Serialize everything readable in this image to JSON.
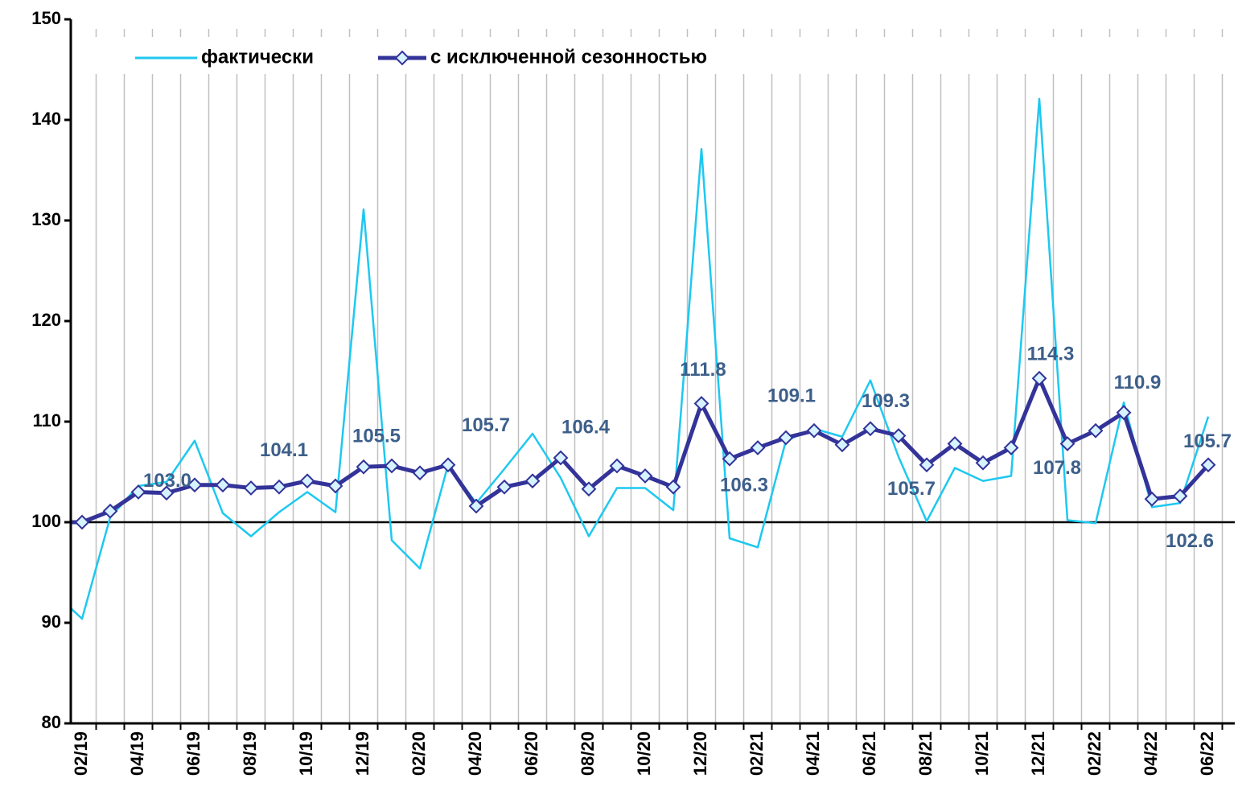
{
  "chart_data": {
    "type": "line",
    "categories": [
      null,
      "02/19",
      null,
      "04/19",
      null,
      "06/19",
      null,
      "08/19",
      null,
      "10/19",
      null,
      "12/19",
      null,
      "02/20",
      null,
      "04/20",
      null,
      "06/20",
      null,
      "08/20",
      null,
      "10/20",
      null,
      "12/20",
      null,
      "02/21",
      null,
      "04/21",
      null,
      "06/21",
      null,
      "08/21",
      null,
      "10/21",
      null,
      "12/21",
      null,
      "02/22",
      null,
      "04/22",
      null,
      "06/22"
    ],
    "series": [
      {
        "name": "фактически",
        "color": "#1ec8f0",
        "values": [
          93.0,
          90.4,
          100.5,
          103.6,
          104.0,
          108.1,
          100.9,
          98.6,
          101.0,
          103.0,
          101.0,
          131.1,
          98.2,
          95.4,
          105.7,
          101.9,
          105.3,
          108.8,
          104.4,
          98.6,
          103.4,
          103.4,
          101.2,
          137.1,
          98.4,
          97.5,
          108.1,
          109.3,
          108.5,
          114.1,
          106.5,
          100.1,
          105.4,
          104.1,
          104.6,
          142.1,
          100.2,
          99.9,
          111.9,
          101.5,
          101.9,
          110.5
        ]
      },
      {
        "name": "с исключенной сезонностью",
        "color": "#333399",
        "values": [
          100.0,
          100.0,
          101.1,
          103.0,
          102.9,
          103.7,
          103.7,
          103.4,
          103.5,
          104.1,
          103.6,
          105.5,
          105.6,
          104.9,
          105.7,
          101.6,
          103.5,
          104.1,
          106.4,
          103.3,
          105.6,
          104.6,
          103.5,
          111.8,
          106.3,
          107.4,
          108.4,
          109.1,
          107.7,
          109.3,
          108.6,
          105.7,
          107.8,
          105.9,
          107.4,
          114.3,
          107.8,
          109.1,
          110.9,
          102.3,
          102.6,
          105.7
        ],
        "value_labels": [
          null,
          null,
          null,
          "103.0",
          null,
          null,
          null,
          null,
          null,
          "104.1",
          null,
          "105.5",
          null,
          null,
          "105.7",
          null,
          null,
          null,
          "106.4",
          null,
          null,
          null,
          null,
          "111.8",
          "106.3",
          null,
          null,
          "109.1",
          null,
          "109.3",
          null,
          "105.7",
          null,
          null,
          null,
          "114.3",
          "107.8",
          null,
          "110.9",
          null,
          "102.6",
          "105.7"
        ]
      }
    ],
    "ylim": [
      80,
      150
    ],
    "yticks": [
      80,
      90,
      100,
      110,
      120,
      130,
      140,
      150
    ],
    "baseline": 100,
    "grid": true
  }
}
